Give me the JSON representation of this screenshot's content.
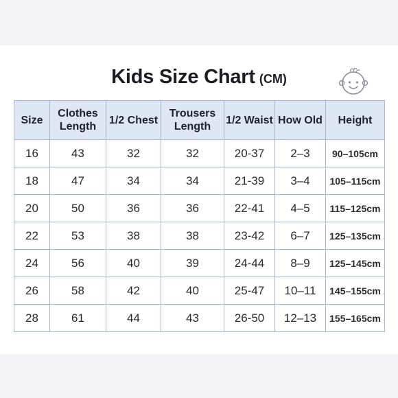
{
  "title": "Kids Size Chart",
  "title_unit": "(CM)",
  "icon": "baby-face-icon",
  "colors": {
    "header_bg": "#dfe6f4",
    "border": "#a9b6cf",
    "title": "#1b1b20"
  },
  "headers": [
    "Size",
    "Clothes Length",
    "1/2 Chest",
    "Trousers Length",
    "1/2 Waist",
    "How Old",
    "Height"
  ],
  "rows": [
    [
      "16",
      "43",
      "32",
      "32",
      "20-37",
      "2–3",
      "90–105cm"
    ],
    [
      "18",
      "47",
      "34",
      "34",
      "21-39",
      "3–4",
      "105–115cm"
    ],
    [
      "20",
      "50",
      "36",
      "36",
      "22-41",
      "4–5",
      "115–125cm"
    ],
    [
      "22",
      "53",
      "38",
      "38",
      "23-42",
      "6–7",
      "125–135cm"
    ],
    [
      "24",
      "56",
      "40",
      "39",
      "24-44",
      "8–9",
      "125–145cm"
    ],
    [
      "26",
      "58",
      "42",
      "40",
      "25-47",
      "10–11",
      "145–155cm"
    ],
    [
      "28",
      "61",
      "44",
      "43",
      "26-50",
      "12–13",
      "155–165cm"
    ]
  ]
}
